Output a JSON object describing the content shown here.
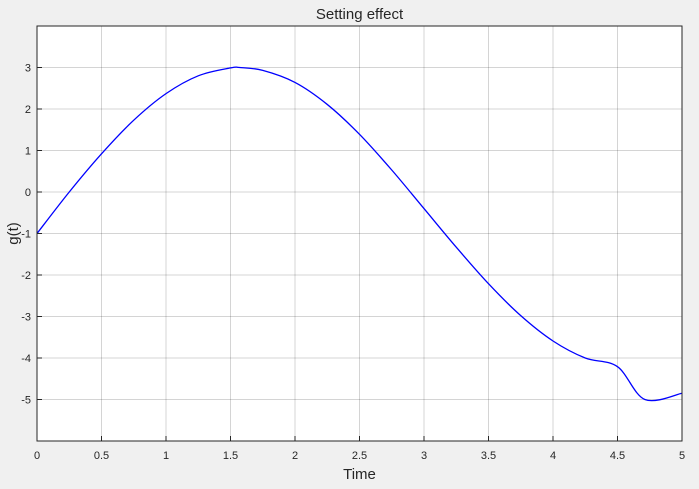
{
  "chart_data": {
    "type": "line",
    "title": "Setting effect",
    "xlabel": "Time",
    "ylabel": "g(t)",
    "xlim": [
      0,
      5
    ],
    "ylim": [
      -6,
      4
    ],
    "grid": true,
    "xticks": [
      0,
      0.5,
      1,
      1.5,
      2,
      2.5,
      3,
      3.5,
      4,
      4.5,
      5
    ],
    "xtick_labels": [
      "0",
      "0.5",
      "1",
      "1.5",
      "2",
      "2.5",
      "3",
      "3.5",
      "4",
      "4.5",
      "5"
    ],
    "yticks": [
      -5,
      -4,
      -3,
      -2,
      -1,
      0,
      1,
      2,
      3
    ],
    "ytick_labels": [
      "-5",
      "-4",
      "-3",
      "-2",
      "-1",
      "0",
      "1",
      "2",
      "3"
    ],
    "series": [
      {
        "color": "#0000ff",
        "x": [
          0,
          0.25,
          0.5,
          0.75,
          1,
          1.25,
          1.5,
          1.571,
          1.75,
          2,
          2.25,
          2.5,
          2.75,
          3,
          3.25,
          3.5,
          3.75,
          4,
          4.25,
          4.5,
          4.712,
          5
        ],
        "y": [
          -1,
          0,
          0.92,
          1.73,
          2.37,
          2.8,
          2.99,
          3,
          2.93,
          2.64,
          2.11,
          1.39,
          0.53,
          -0.4,
          -1.33,
          -2.21,
          -2.98,
          -3.59,
          -4,
          -4.21,
          -5,
          -4.85
        ]
      }
    ]
  }
}
